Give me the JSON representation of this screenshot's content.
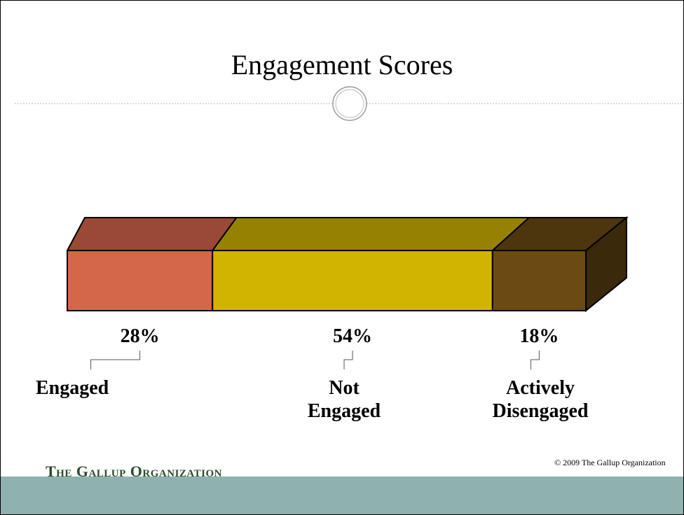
{
  "chart_data": {
    "type": "stacked-bar",
    "title": "Engagement Scores",
    "series": [
      {
        "name": "Engaged",
        "color": "#d4664a",
        "values": [
          28
        ],
        "value_labels": [
          "28%"
        ]
      },
      {
        "name": "Not Engaged",
        "color": "#d1b400",
        "values": [
          54
        ],
        "value_labels": [
          "54%"
        ]
      },
      {
        "name": "Actively Disengaged",
        "color": "#6b4a14",
        "values": [
          18
        ],
        "value_labels": [
          "18%"
        ]
      }
    ],
    "logo": "The Gallup Organization",
    "copyright": "© 2009 The Gallup Organization"
  }
}
